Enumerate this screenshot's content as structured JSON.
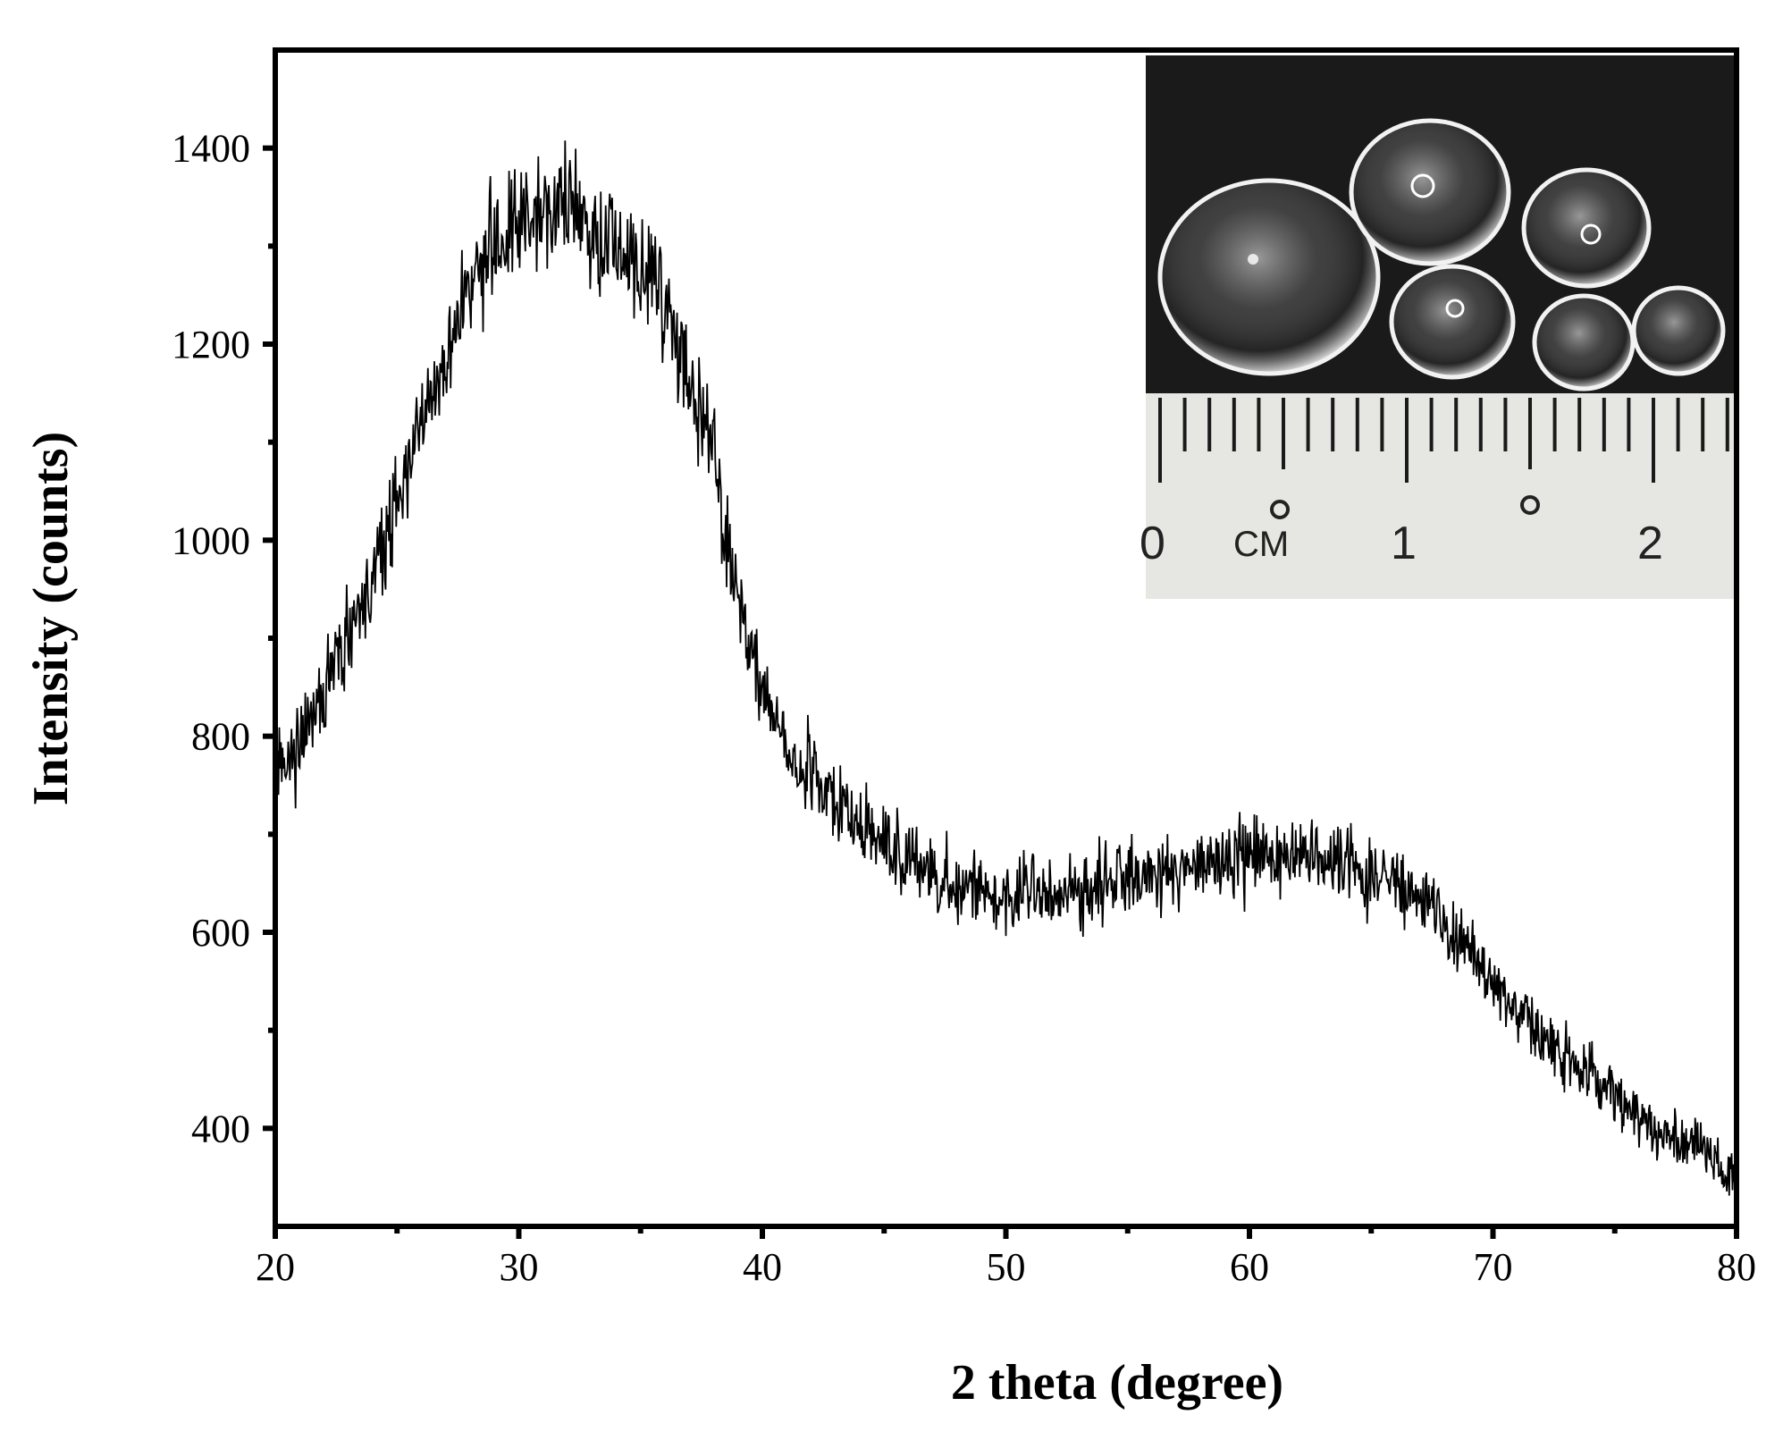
{
  "chart_data": {
    "type": "line",
    "xlabel": "2 theta (degree)",
    "ylabel": "Intensity (counts)",
    "xlim": [
      20,
      80
    ],
    "ylim": [
      300,
      1500
    ],
    "x_ticks": [
      20,
      30,
      40,
      50,
      60,
      70,
      80
    ],
    "y_ticks": [
      400,
      600,
      800,
      1000,
      1200,
      1400
    ],
    "grid": false,
    "legend": "none",
    "line_color": "#000000",
    "noise_amplitude": 35,
    "series": [
      {
        "x": [
          20,
          21,
          22,
          23,
          24,
          25,
          26,
          27,
          28,
          29,
          30,
          31,
          32,
          33,
          34,
          35,
          36,
          37,
          38,
          39,
          40,
          41,
          42,
          43,
          44,
          45,
          46,
          47,
          48,
          49,
          50,
          51,
          52,
          53,
          54,
          55,
          56,
          57,
          58,
          59,
          60,
          61,
          62,
          63,
          64,
          65,
          66,
          67,
          68,
          69,
          70,
          71,
          72,
          73,
          74,
          75,
          76,
          77,
          78,
          79,
          80
        ],
        "values": [
          760,
          790,
          840,
          900,
          960,
          1040,
          1120,
          1200,
          1260,
          1300,
          1330,
          1340,
          1340,
          1320,
          1300,
          1270,
          1240,
          1160,
          1080,
          930,
          850,
          800,
          760,
          730,
          710,
          690,
          670,
          655,
          645,
          640,
          640,
          640,
          640,
          645,
          650,
          655,
          660,
          665,
          670,
          675,
          680,
          680,
          678,
          675,
          670,
          660,
          650,
          630,
          610,
          580,
          550,
          520,
          495,
          470,
          450,
          430,
          410,
          395,
          385,
          370,
          355
        ]
      }
    ]
  },
  "inset": {
    "ruler_labels": [
      "0",
      "CM",
      "1",
      "2"
    ]
  },
  "colors": {
    "inset_background": "#1a1a1a",
    "ruler": "#e6e6e2"
  }
}
